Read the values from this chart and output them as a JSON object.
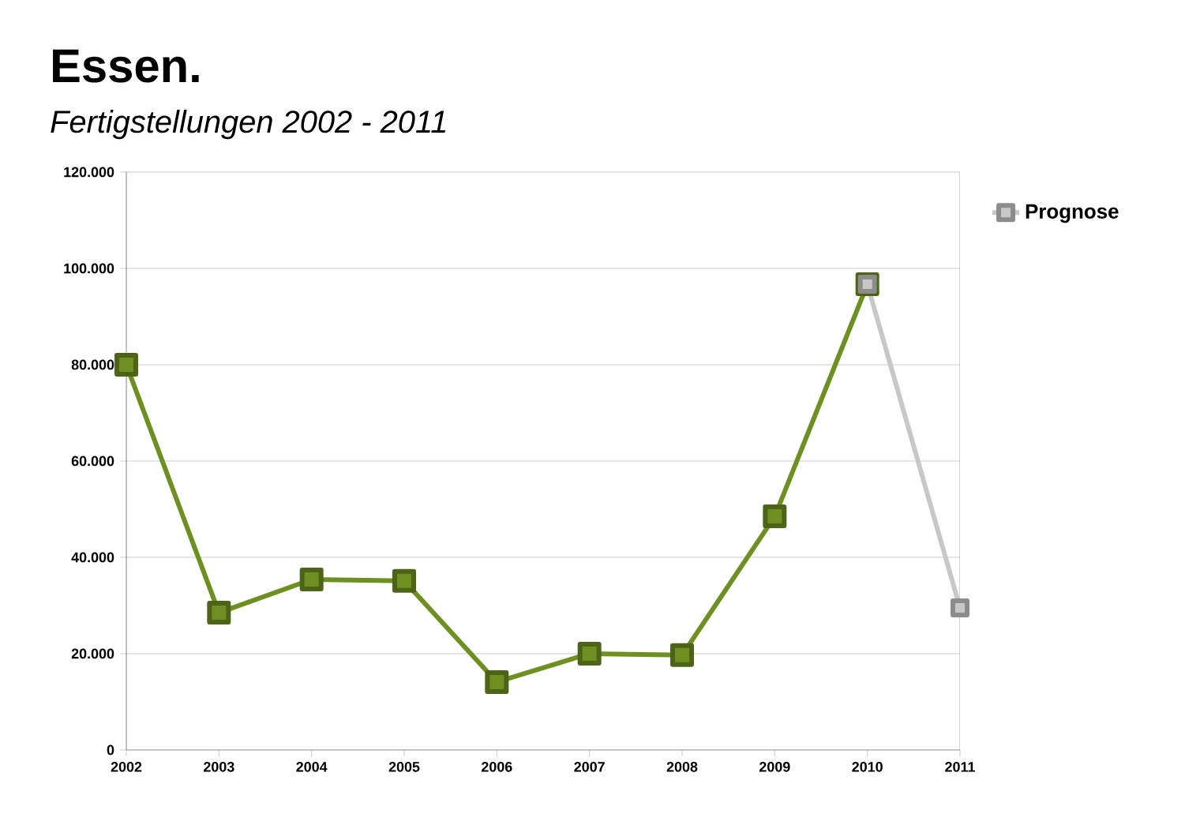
{
  "chart_data": {
    "type": "line",
    "title": "Essen.",
    "subtitle": "Fertigstellungen 2002 - 2011",
    "categories": [
      "2002",
      "2003",
      "2004",
      "2005",
      "2006",
      "2007",
      "2008",
      "2009",
      "2010",
      "2011"
    ],
    "series": [
      {
        "color": "#6e8f22",
        "values": [
          80000,
          28500,
          35400,
          35100,
          14100,
          20000,
          19700,
          48500,
          96700,
          null
        ]
      },
      {
        "name": "Prognose",
        "color": "#c8c8c8",
        "values": [
          null,
          null,
          null,
          null,
          null,
          null,
          null,
          null,
          96700,
          29500
        ]
      }
    ],
    "ylim": [
      0,
      120000
    ],
    "yticks": [
      0,
      {
        "value": 20000,
        "label": "20.000"
      },
      {
        "value": 40000,
        "label": "40.000"
      },
      {
        "value": 60000,
        "label": "60.000"
      },
      {
        "value": 80000,
        "label": "80.000"
      },
      {
        "value": 100000,
        "label": "100.000"
      },
      {
        "value": 120000,
        "label": "120.000"
      }
    ],
    "grid": "y",
    "legend": "top right",
    "marker": "square",
    "line_style": "solid"
  }
}
